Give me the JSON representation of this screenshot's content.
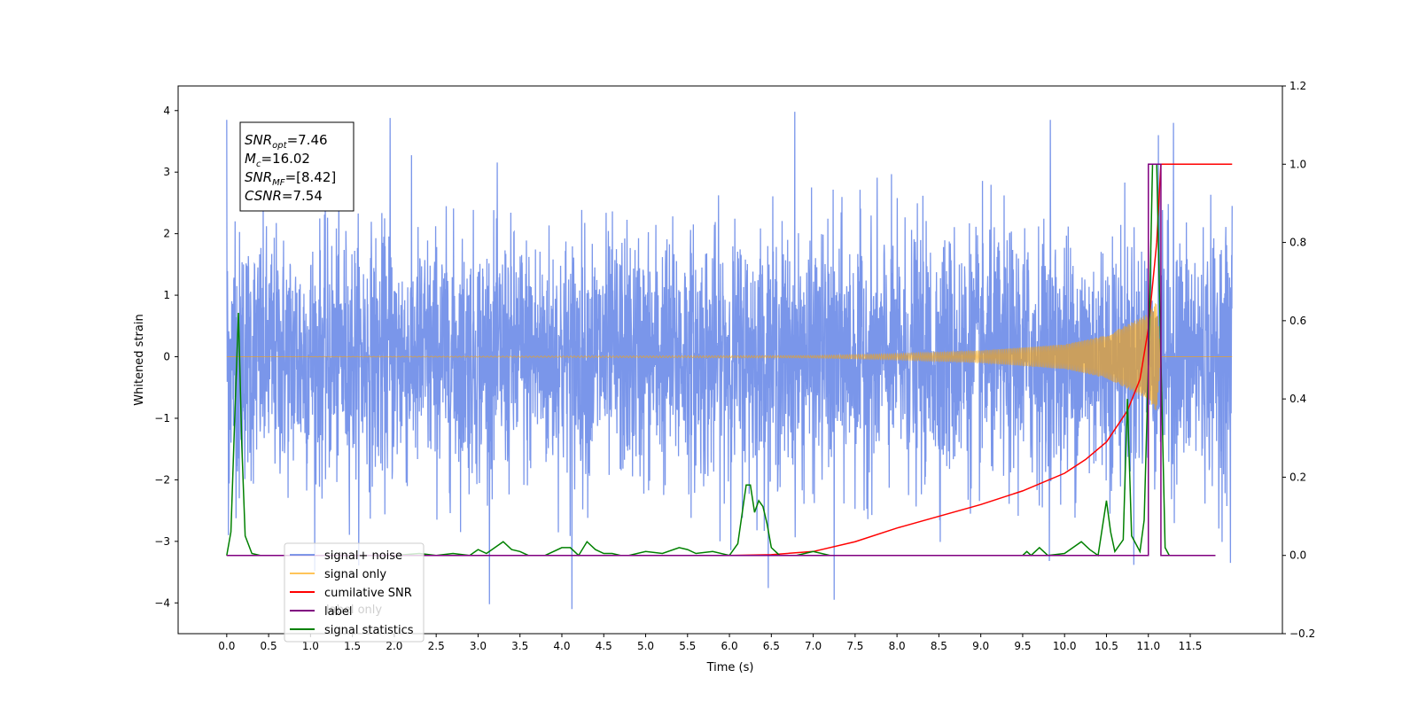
{
  "chart_data": {
    "type": "line",
    "xlabel": "Time (s)",
    "ylabel_left": "Whitened strain",
    "ylabel_right": "",
    "xlim": [
      -0.58,
      12.6
    ],
    "ylim_left": [
      -4.5,
      4.4
    ],
    "ylim_right": [
      -0.2,
      1.2
    ],
    "x_ticks": [
      0.0,
      0.5,
      1.0,
      1.5,
      2.0,
      2.5,
      3.0,
      3.5,
      4.0,
      4.5,
      5.0,
      5.5,
      6.0,
      6.5,
      7.0,
      7.5,
      8.0,
      8.5,
      9.0,
      9.5,
      10.0,
      10.5,
      11.0,
      11.5
    ],
    "x_tick_labels": [
      "0.0",
      "0.5",
      "1.0",
      "1.5",
      "2.0",
      "2.5",
      "3.0",
      "3.5",
      "4.0",
      "4.5",
      "5.0",
      "5.5",
      "6.0",
      "6.5",
      "7.0",
      "7.5",
      "8.0",
      "8.5",
      "9.0",
      "9.5",
      "10.0",
      "10.5",
      "11.0",
      "11.5"
    ],
    "y_ticks_left": [
      -4,
      -3,
      -2,
      -1,
      0,
      1,
      2,
      3,
      4
    ],
    "y_tick_labels_left": [
      "−4",
      "−3",
      "−2",
      "−1",
      "0",
      "1",
      "2",
      "3",
      "4"
    ],
    "y_ticks_right": [
      -0.2,
      0.0,
      0.2,
      0.4,
      0.6,
      0.8,
      1.0,
      1.2
    ],
    "y_tick_labels_right": [
      "−0.2",
      "0.0",
      "0.2",
      "0.4",
      "0.6",
      "0.8",
      "1.0",
      "1.2"
    ],
    "grid": false,
    "legend_position": "lower-left",
    "annotation": {
      "lines": [
        {
          "sym": "SNR",
          "sub": "opt",
          "val": "=7.46"
        },
        {
          "sym": "M",
          "sub": "c",
          "val": "=16.02"
        },
        {
          "sym": "SNR",
          "sub": "MF",
          "val": "=[8.42]"
        },
        {
          "sym": "CSNR",
          "sub": "",
          "val": "=7.54"
        }
      ]
    },
    "noise_trace": {
      "name": "signal+ noise",
      "x_range": [
        0.0,
        12.0
      ],
      "n_samples": 4000,
      "approx_std": 1.0,
      "approx_min": -4.1,
      "approx_max": 4.0
    },
    "series": [
      {
        "name": "signal+ noise",
        "axis": "left",
        "color": "#4169e1",
        "opacity": 0.7,
        "x": [
          0.0,
          0.02,
          0.1,
          0.15,
          0.2,
          1.95,
          4.12,
          6.78,
          7.25,
          9.83,
          11.12,
          11.3,
          11.98,
          12.0
        ],
        "y": [
          3.85,
          -2.9,
          2.2,
          -2.3,
          1.5,
          3.88,
          -4.1,
          3.98,
          -3.95,
          3.85,
          3.6,
          3.8,
          -3.35,
          2.45
        ]
      },
      {
        "name": "signal only",
        "axis": "left",
        "color": "#ffa500",
        "opacity": 0.6,
        "x": [
          0.0,
          7.0,
          8.0,
          9.0,
          10.0,
          10.5,
          11.0,
          11.1,
          11.15,
          12.0
        ],
        "envelope": [
          0.0,
          0.02,
          0.05,
          0.1,
          0.2,
          0.35,
          0.7,
          0.9,
          0.0,
          0.0
        ]
      },
      {
        "name": "cumilative SNR",
        "axis": "right",
        "color": "#ff0000",
        "x": [
          0.0,
          6.0,
          6.5,
          7.0,
          7.5,
          8.0,
          8.5,
          9.0,
          9.5,
          10.0,
          10.25,
          10.5,
          10.75,
          10.9,
          11.0,
          11.1,
          11.15,
          11.2,
          12.0
        ],
        "y": [
          0.0,
          0.0,
          0.002,
          0.01,
          0.035,
          0.07,
          0.1,
          0.13,
          0.165,
          0.21,
          0.245,
          0.29,
          0.37,
          0.45,
          0.58,
          0.8,
          1.0,
          1.0,
          1.0
        ]
      },
      {
        "name": "label",
        "axis": "right",
        "color": "#800080",
        "x": [
          0.0,
          11.0,
          11.0,
          11.15,
          11.15,
          11.8
        ],
        "y": [
          0.0,
          0.0,
          1.0,
          1.0,
          0.0,
          0.0
        ]
      },
      {
        "name": "signal statistics",
        "axis": "right",
        "color": "#008000",
        "x": [
          0.0,
          0.05,
          0.1,
          0.14,
          0.18,
          0.22,
          0.3,
          0.4,
          0.6,
          1.0,
          2.0,
          2.3,
          2.5,
          2.7,
          2.9,
          3.0,
          3.1,
          3.2,
          3.3,
          3.4,
          3.5,
          3.6,
          3.8,
          4.0,
          4.1,
          4.2,
          4.3,
          4.4,
          4.5,
          4.6,
          4.7,
          4.8,
          5.0,
          5.2,
          5.4,
          5.5,
          5.6,
          5.8,
          6.0,
          6.1,
          6.2,
          6.25,
          6.3,
          6.35,
          6.4,
          6.45,
          6.5,
          6.6,
          6.7,
          6.8,
          7.0,
          7.2,
          7.3,
          7.5,
          8.0,
          8.2,
          8.5,
          9.0,
          9.5,
          9.55,
          9.6,
          9.7,
          9.8,
          10.0,
          10.2,
          10.3,
          10.4,
          10.5,
          10.55,
          10.6,
          10.7,
          10.75,
          10.8,
          10.9,
          10.95,
          11.0,
          11.05,
          11.1,
          11.15,
          11.2,
          11.25,
          11.3,
          11.5,
          11.8
        ],
        "y": [
          0.0,
          0.06,
          0.38,
          0.62,
          0.28,
          0.05,
          0.005,
          0.0,
          0.0,
          0.0,
          0.0,
          0.005,
          0.0,
          0.005,
          0.0,
          0.015,
          0.005,
          0.02,
          0.035,
          0.015,
          0.01,
          0.0,
          0.0,
          0.02,
          0.02,
          0.0,
          0.035,
          0.015,
          0.005,
          0.005,
          0.0,
          0.0,
          0.01,
          0.005,
          0.02,
          0.015,
          0.005,
          0.01,
          0.0,
          0.03,
          0.18,
          0.18,
          0.11,
          0.14,
          0.125,
          0.08,
          0.02,
          0.0,
          0.0,
          0.0,
          0.01,
          0.0,
          0.0,
          0.0,
          0.0,
          0.0,
          0.0,
          0.0,
          0.0,
          0.01,
          0.0,
          0.02,
          0.0,
          0.005,
          0.035,
          0.015,
          0.0,
          0.14,
          0.06,
          0.01,
          0.04,
          0.4,
          0.05,
          0.01,
          0.09,
          0.48,
          1.0,
          1.0,
          0.5,
          0.02,
          0.0,
          0.0,
          0.0,
          0.0
        ]
      }
    ],
    "legend": [
      {
        "label": "signal+ noise",
        "color": "#4169e1"
      },
      {
        "label": "signal only",
        "color": "#ffa500"
      },
      {
        "label": "cumilative SNR",
        "color": "#ff0000"
      },
      {
        "label": "label",
        "color": "#800080"
      },
      {
        "label": "signal statistics",
        "color": "#008000"
      }
    ],
    "legend_hidden_text": "label only"
  }
}
